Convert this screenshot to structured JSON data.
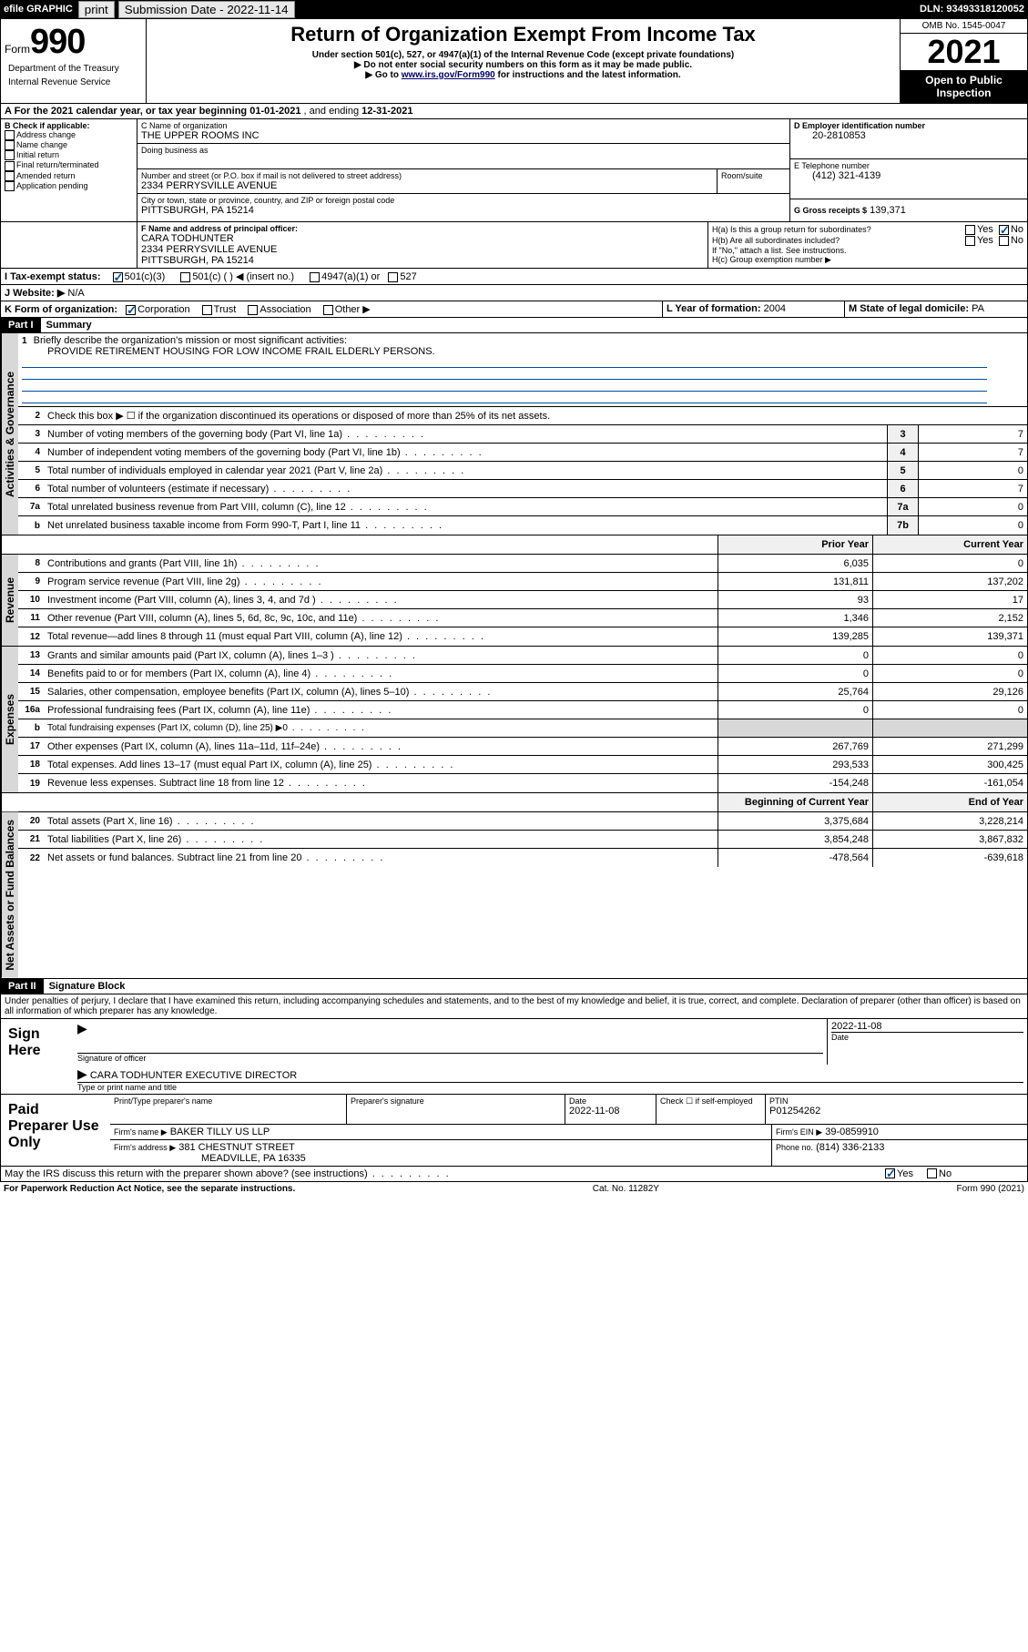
{
  "topbar": {
    "efile": "efile GRAPHIC",
    "print": "print",
    "sub_label": "Submission Date - 2022-11-14",
    "dln": "DLN: 93493318120052"
  },
  "header": {
    "form_word": "Form",
    "form_num": "990",
    "title": "Return of Organization Exempt From Income Tax",
    "sub1": "Under section 501(c), 527, or 4947(a)(1) of the Internal Revenue Code (except private foundations)",
    "sub2": "▶ Do not enter social security numbers on this form as it may be made public.",
    "sub3_pre": "▶ Go to ",
    "sub3_link": "www.irs.gov/Form990",
    "sub3_post": " for instructions and the latest information.",
    "omb": "OMB No. 1545-0047",
    "year": "2021",
    "open": "Open to Public Inspection",
    "dept": "Department of the Treasury",
    "irs": "Internal Revenue Service"
  },
  "lineA": {
    "prefix": "A For the 2021 calendar year, or tax year beginning ",
    "begin": "01-01-2021",
    "mid": " , and ending ",
    "end": "12-31-2021"
  },
  "boxB": {
    "label": "B Check if applicable:",
    "items": [
      "Address change",
      "Name change",
      "Initial return",
      "Final return/terminated",
      "Amended return",
      "Application pending"
    ]
  },
  "boxC": {
    "label": "C Name of organization",
    "name": "THE UPPER ROOMS INC",
    "dba_label": "Doing business as",
    "dba": "",
    "street_label": "Number and street (or P.O. box if mail is not delivered to street address)",
    "room_label": "Room/suite",
    "street": "2334 PERRYSVILLE AVENUE",
    "city_label": "City or town, state or province, country, and ZIP or foreign postal code",
    "city": "PITTSBURGH, PA  15214"
  },
  "boxD": {
    "label": "D Employer identification number",
    "value": "20-2810853"
  },
  "boxE": {
    "label": "E Telephone number",
    "value": "(412) 321-4139"
  },
  "boxG": {
    "label": "G Gross receipts $",
    "value": "139,371"
  },
  "boxF": {
    "label": "F Name and address of principal officer:",
    "name": "CARA TODHUNTER",
    "addr1": "2334 PERRYSVILLE AVENUE",
    "addr2": "PITTSBURGH, PA  15214"
  },
  "boxH": {
    "a": "H(a)  Is this a group return for subordinates?",
    "b": "H(b)  Are all subordinates included?",
    "note": "If \"No,\" attach a list. See instructions.",
    "c": "H(c)  Group exemption number ▶",
    "yes": "Yes",
    "no": "No"
  },
  "lineI": {
    "label": "I    Tax-exempt status:",
    "opts": [
      "501(c)(3)",
      "501(c) (   ) ◀ (insert no.)",
      "4947(a)(1) or",
      "527"
    ]
  },
  "lineJ": {
    "label": "J    Website: ▶",
    "value": "N/A"
  },
  "lineK": {
    "label": "K Form of organization:",
    "opts": [
      "Corporation",
      "Trust",
      "Association",
      "Other ▶"
    ]
  },
  "lineL": {
    "label": "L Year of formation:",
    "value": "2004"
  },
  "lineM": {
    "label": "M State of legal domicile:",
    "value": "PA"
  },
  "partI": {
    "num": "Part I",
    "title": "Summary"
  },
  "summary": {
    "mission_label": "Briefly describe the organization's mission or most significant activities:",
    "mission": "PROVIDE RETIREMENT HOUSING FOR LOW INCOME FRAIL ELDERLY PERSONS.",
    "line2": "Check this box ▶ ☐ if the organization discontinued its operations or disposed of more than 25% of its net assets.",
    "line3": "Number of voting members of the governing body (Part VI, line 1a)",
    "line4": "Number of independent voting members of the governing body (Part VI, line 1b)",
    "line5": "Total number of individuals employed in calendar year 2021 (Part V, line 2a)",
    "line6": "Total number of volunteers (estimate if necessary)",
    "line7a": "Total unrelated business revenue from Part VIII, column (C), line 12",
    "line7b": "Net unrelated business taxable income from Form 990-T, Part I, line 11",
    "v3": "7",
    "v4": "7",
    "v5": "0",
    "v6": "7",
    "v7a": "0",
    "v7b": "0"
  },
  "revExp": {
    "hdr_prior": "Prior Year",
    "hdr_curr": "Current Year",
    "rows": [
      {
        "n": "8",
        "t": "Contributions and grants (Part VIII, line 1h)",
        "p": "6,035",
        "c": "0"
      },
      {
        "n": "9",
        "t": "Program service revenue (Part VIII, line 2g)",
        "p": "131,811",
        "c": "137,202"
      },
      {
        "n": "10",
        "t": "Investment income (Part VIII, column (A), lines 3, 4, and 7d )",
        "p": "93",
        "c": "17"
      },
      {
        "n": "11",
        "t": "Other revenue (Part VIII, column (A), lines 5, 6d, 8c, 9c, 10c, and 11e)",
        "p": "1,346",
        "c": "2,152"
      },
      {
        "n": "12",
        "t": "Total revenue—add lines 8 through 11 (must equal Part VIII, column (A), line 12)",
        "p": "139,285",
        "c": "139,371"
      },
      {
        "n": "13",
        "t": "Grants and similar amounts paid (Part IX, column (A), lines 1–3 )",
        "p": "0",
        "c": "0"
      },
      {
        "n": "14",
        "t": "Benefits paid to or for members (Part IX, column (A), line 4)",
        "p": "0",
        "c": "0"
      },
      {
        "n": "15",
        "t": "Salaries, other compensation, employee benefits (Part IX, column (A), lines 5–10)",
        "p": "25,764",
        "c": "29,126"
      },
      {
        "n": "16a",
        "t": "Professional fundraising fees (Part IX, column (A), line 11e)",
        "p": "0",
        "c": "0"
      },
      {
        "n": "b",
        "t": "Total fundraising expenses (Part IX, column (D), line 25) ▶0",
        "p": "",
        "c": ""
      },
      {
        "n": "17",
        "t": "Other expenses (Part IX, column (A), lines 11a–11d, 11f–24e)",
        "p": "267,769",
        "c": "271,299"
      },
      {
        "n": "18",
        "t": "Total expenses. Add lines 13–17 (must equal Part IX, column (A), line 25)",
        "p": "293,533",
        "c": "300,425"
      },
      {
        "n": "19",
        "t": "Revenue less expenses. Subtract line 18 from line 12",
        "p": "-154,248",
        "c": "-161,054"
      }
    ],
    "hdr_begin": "Beginning of Current Year",
    "hdr_end": "End of Year",
    "netRows": [
      {
        "n": "20",
        "t": "Total assets (Part X, line 16)",
        "p": "3,375,684",
        "c": "3,228,214"
      },
      {
        "n": "21",
        "t": "Total liabilities (Part X, line 26)",
        "p": "3,854,248",
        "c": "3,867,832"
      },
      {
        "n": "22",
        "t": "Net assets or fund balances. Subtract line 21 from line 20",
        "p": "-478,564",
        "c": "-639,618"
      }
    ]
  },
  "tabs": {
    "gov": "Activities & Governance",
    "rev": "Revenue",
    "exp": "Expenses",
    "net": "Net Assets or Fund Balances"
  },
  "partII": {
    "num": "Part II",
    "title": "Signature Block"
  },
  "sigDecl": "Under penalties of perjury, I declare that I have examined this return, including accompanying schedules and statements, and to the best of my knowledge and belief, it is true, correct, and complete. Declaration of preparer (other than officer) is based on all information of which preparer has any knowledge.",
  "sign": {
    "here": "Sign Here",
    "sig_officer": "Signature of officer",
    "date_label": "Date",
    "date": "2022-11-08",
    "name": "CARA TODHUNTER  EXECUTIVE DIRECTOR",
    "name_label": "Type or print name and title"
  },
  "paid": {
    "label": "Paid Preparer Use Only",
    "col1": "Print/Type preparer's name",
    "col2": "Preparer's signature",
    "col3": "Date",
    "date": "2022-11-08",
    "check_label": "Check ☐ if self-employed",
    "ptin_label": "PTIN",
    "ptin": "P01254262",
    "firm_name_l": "Firm's name    ▶",
    "firm_name": "BAKER TILLY US LLP",
    "firm_ein_l": "Firm's EIN ▶",
    "firm_ein": "39-0859910",
    "firm_addr_l": "Firm's address ▶",
    "firm_addr1": "381 CHESTNUT STREET",
    "firm_addr2": "MEADVILLE, PA  16335",
    "phone_l": "Phone no.",
    "phone": "(814) 336-2133"
  },
  "discuss": {
    "q": "May the IRS discuss this return with the preparer shown above? (see instructions)",
    "yes": "Yes",
    "no": "No"
  },
  "footer": {
    "left": "For Paperwork Reduction Act Notice, see the separate instructions.",
    "mid": "Cat. No. 11282Y",
    "right": "Form 990 (2021)"
  }
}
